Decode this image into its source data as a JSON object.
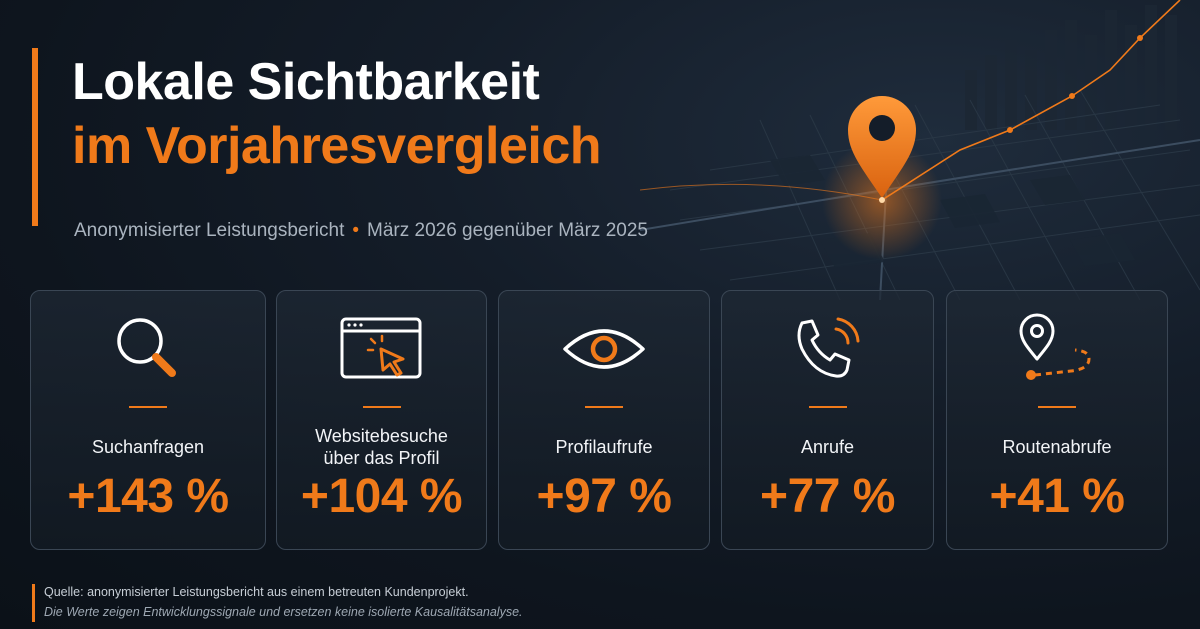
{
  "header": {
    "title_line1": "Lokale Sichtbarkeit",
    "title_line2": "im Vorjahresvergleich",
    "subtitle_part1": "Anonymisierter Leistungsbericht",
    "subtitle_separator": "•",
    "subtitle_part2": "März 2026 gegenüber März 2025"
  },
  "colors": {
    "accent": "#f07a1a",
    "background": "#0e151e",
    "text": "#ffffff"
  },
  "metrics": [
    {
      "icon": "magnifier-icon",
      "label_line1": "Suchanfragen",
      "label_line2": "",
      "value": "+143 %"
    },
    {
      "icon": "browser-cursor-icon",
      "label_line1": "Websitebesuche",
      "label_line2": "über das Profil",
      "value": "+104 %"
    },
    {
      "icon": "eye-icon",
      "label_line1": "Profilaufrufe",
      "label_line2": "",
      "value": "+97 %"
    },
    {
      "icon": "phone-call-icon",
      "label_line1": "Anrufe",
      "label_line2": "",
      "value": "+77 %"
    },
    {
      "icon": "route-pin-icon",
      "label_line1": "Routenabrufe",
      "label_line2": "",
      "value": "+41 %"
    }
  ],
  "footer": {
    "source": "Quelle: anonymisierter Leistungsbericht aus einem betreuten Kundenprojekt.",
    "disclaimer": "Die Werte zeigen Entwicklungssignale und ersetzen keine isolierte Kausalitätsanalyse."
  }
}
